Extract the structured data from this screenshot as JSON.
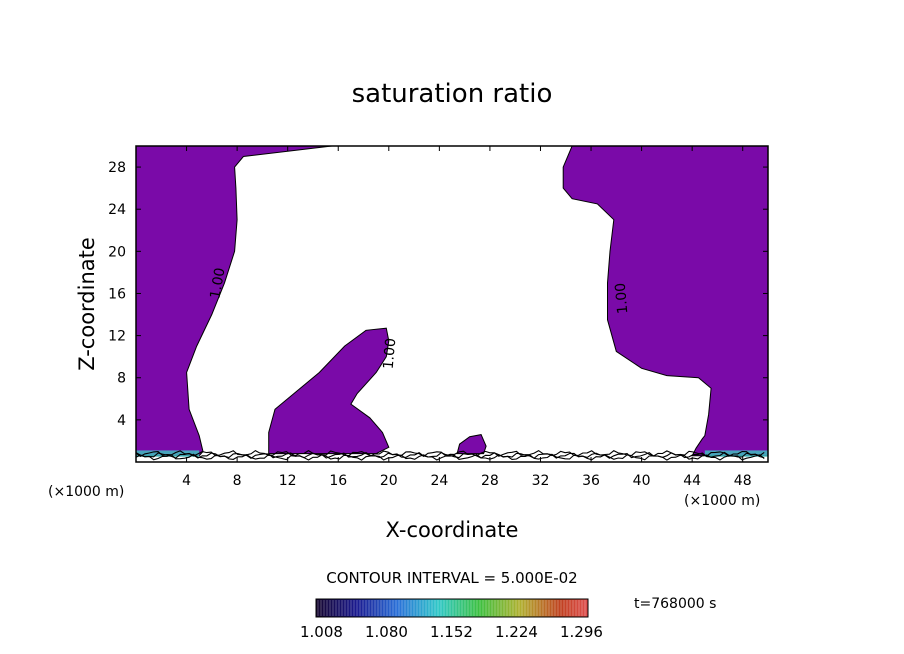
{
  "chart_data": {
    "type": "contour",
    "title": "saturation ratio",
    "xlabel": "X-coordinate",
    "ylabel": "Z-coordinate",
    "x_unit": "(×1000 m)",
    "z_unit": "(×1000 m)",
    "xlim": [
      0,
      50
    ],
    "zlim": [
      0,
      30
    ],
    "x_ticks": [
      4,
      8,
      12,
      16,
      20,
      24,
      28,
      32,
      36,
      40,
      44,
      48
    ],
    "z_ticks": [
      4,
      8,
      12,
      16,
      20,
      24,
      28
    ],
    "fill_color": "#7a0aa8",
    "contour_label": "1.00",
    "contour_interval_text": "CONTOUR INTERVAL = 5.000E-02",
    "time_label": "t=768000 s",
    "colorbar_ticks": [
      "1.008",
      "1.080",
      "1.152",
      "1.224",
      "1.296"
    ],
    "colorbar_range": [
      1.008,
      1.296
    ],
    "regions": [
      {
        "name": "left-column",
        "points": [
          [
            0,
            30
          ],
          [
            7,
            30
          ],
          [
            15.5,
            30
          ],
          [
            8.5,
            29
          ],
          [
            7.8,
            28
          ],
          [
            7.9,
            26
          ],
          [
            8,
            23
          ],
          [
            7.8,
            20
          ],
          [
            7,
            17
          ],
          [
            6,
            14
          ],
          [
            4.8,
            11
          ],
          [
            4,
            8.5
          ],
          [
            4.2,
            5
          ],
          [
            5,
            2.5
          ],
          [
            5.3,
            1
          ],
          [
            5,
            0.6
          ],
          [
            0,
            0.6
          ]
        ]
      },
      {
        "name": "right-column",
        "points": [
          [
            34.5,
            30
          ],
          [
            50,
            30
          ],
          [
            50,
            0.6
          ],
          [
            44,
            0.6
          ],
          [
            44.3,
            1.3
          ],
          [
            44.8,
            2.2
          ],
          [
            45,
            2.5
          ],
          [
            45.3,
            4.5
          ],
          [
            45.5,
            7
          ],
          [
            44.5,
            8
          ],
          [
            42,
            8.2
          ],
          [
            40,
            8.9
          ],
          [
            38,
            10.5
          ],
          [
            37.3,
            13.5
          ],
          [
            37.3,
            17
          ],
          [
            37.5,
            20
          ],
          [
            37.8,
            23
          ],
          [
            36.5,
            24.5
          ],
          [
            34.5,
            25
          ],
          [
            33.8,
            26
          ],
          [
            33.8,
            28
          ],
          [
            34.5,
            30
          ]
        ]
      },
      {
        "name": "middle-blob",
        "points": [
          [
            10.5,
            0.8
          ],
          [
            10.5,
            2.8
          ],
          [
            11,
            5
          ],
          [
            12.5,
            6.5
          ],
          [
            14.5,
            8.5
          ],
          [
            16.5,
            11
          ],
          [
            18.2,
            12.5
          ],
          [
            19.8,
            12.7
          ],
          [
            20,
            11.5
          ],
          [
            19.8,
            10
          ],
          [
            19,
            8.5
          ],
          [
            17.5,
            6.5
          ],
          [
            17,
            5.5
          ],
          [
            18.5,
            4.2
          ],
          [
            19.5,
            2.8
          ],
          [
            20,
            1.4
          ],
          [
            19,
            0.8
          ]
        ]
      },
      {
        "name": "small-bump",
        "points": [
          [
            25.4,
            0.8
          ],
          [
            25.6,
            1.7
          ],
          [
            26.4,
            2.4
          ],
          [
            27.3,
            2.6
          ],
          [
            27.7,
            1.5
          ],
          [
            27.5,
            0.8
          ]
        ]
      }
    ]
  }
}
